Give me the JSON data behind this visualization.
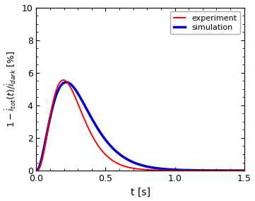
{
  "xlabel": "t [s]",
  "ylabel": "1-$\\dot{i}_{tot}(t)/\\dot{i}_{dark}$ [%]",
  "xlim": [
    0,
    1.5
  ],
  "ylim": [
    0,
    10
  ],
  "xticks": [
    0,
    0.5,
    1.0,
    1.5
  ],
  "yticks": [
    0,
    2,
    4,
    6,
    8,
    10
  ],
  "experiment_color": "#ff0000",
  "simulation_color": "#0000cc",
  "legend_experiment": "experiment",
  "legend_simulation": "simulation",
  "exp_alpha": 2.8,
  "exp_peak_t": 0.195,
  "exp_peak_v": 5.55,
  "sim_alpha": 2.2,
  "sim_peak_t": 0.215,
  "sim_peak_v": 5.42,
  "exp_linewidth": 1.4,
  "sim_linewidth": 2.5,
  "background_color": "#ffffff",
  "xlabel_fontsize": 10,
  "ylabel_fontsize": 9,
  "tick_fontsize": 9,
  "legend_fontsize": 8
}
